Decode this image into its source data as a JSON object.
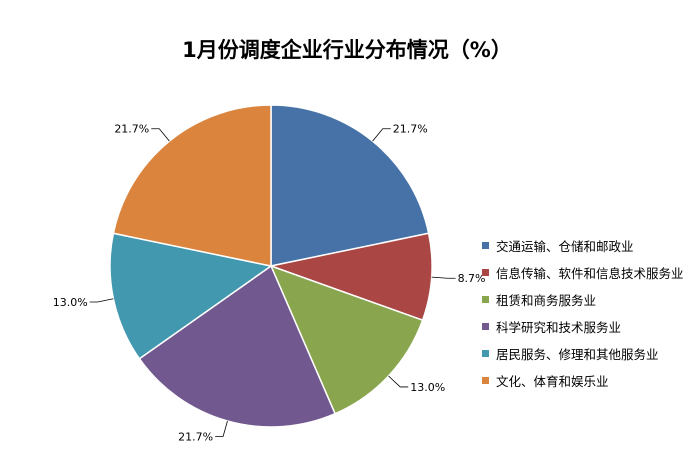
{
  "chart_data": {
    "type": "pie",
    "title": "1月份调度企业行业分布情况（%）",
    "categories": [
      "交通运输、仓储和邮政业",
      "信息传输、软件和信息技术服务业",
      "租赁和商务服务业",
      "科学研究和技术服务业",
      "居民服务、修理和其他服务业",
      "文化、体育和娱乐业"
    ],
    "values": [
      21.7,
      8.7,
      13.0,
      21.7,
      13.0,
      21.7
    ],
    "data_labels": [
      "21.7%",
      "8.7%",
      "13.0%",
      "21.7%",
      "13.0%",
      "21.7%"
    ],
    "colors": [
      "#4672A8",
      "#AA4643",
      "#89A54E",
      "#71588F",
      "#4198AF",
      "#DB843D"
    ],
    "legend_position": "right"
  }
}
